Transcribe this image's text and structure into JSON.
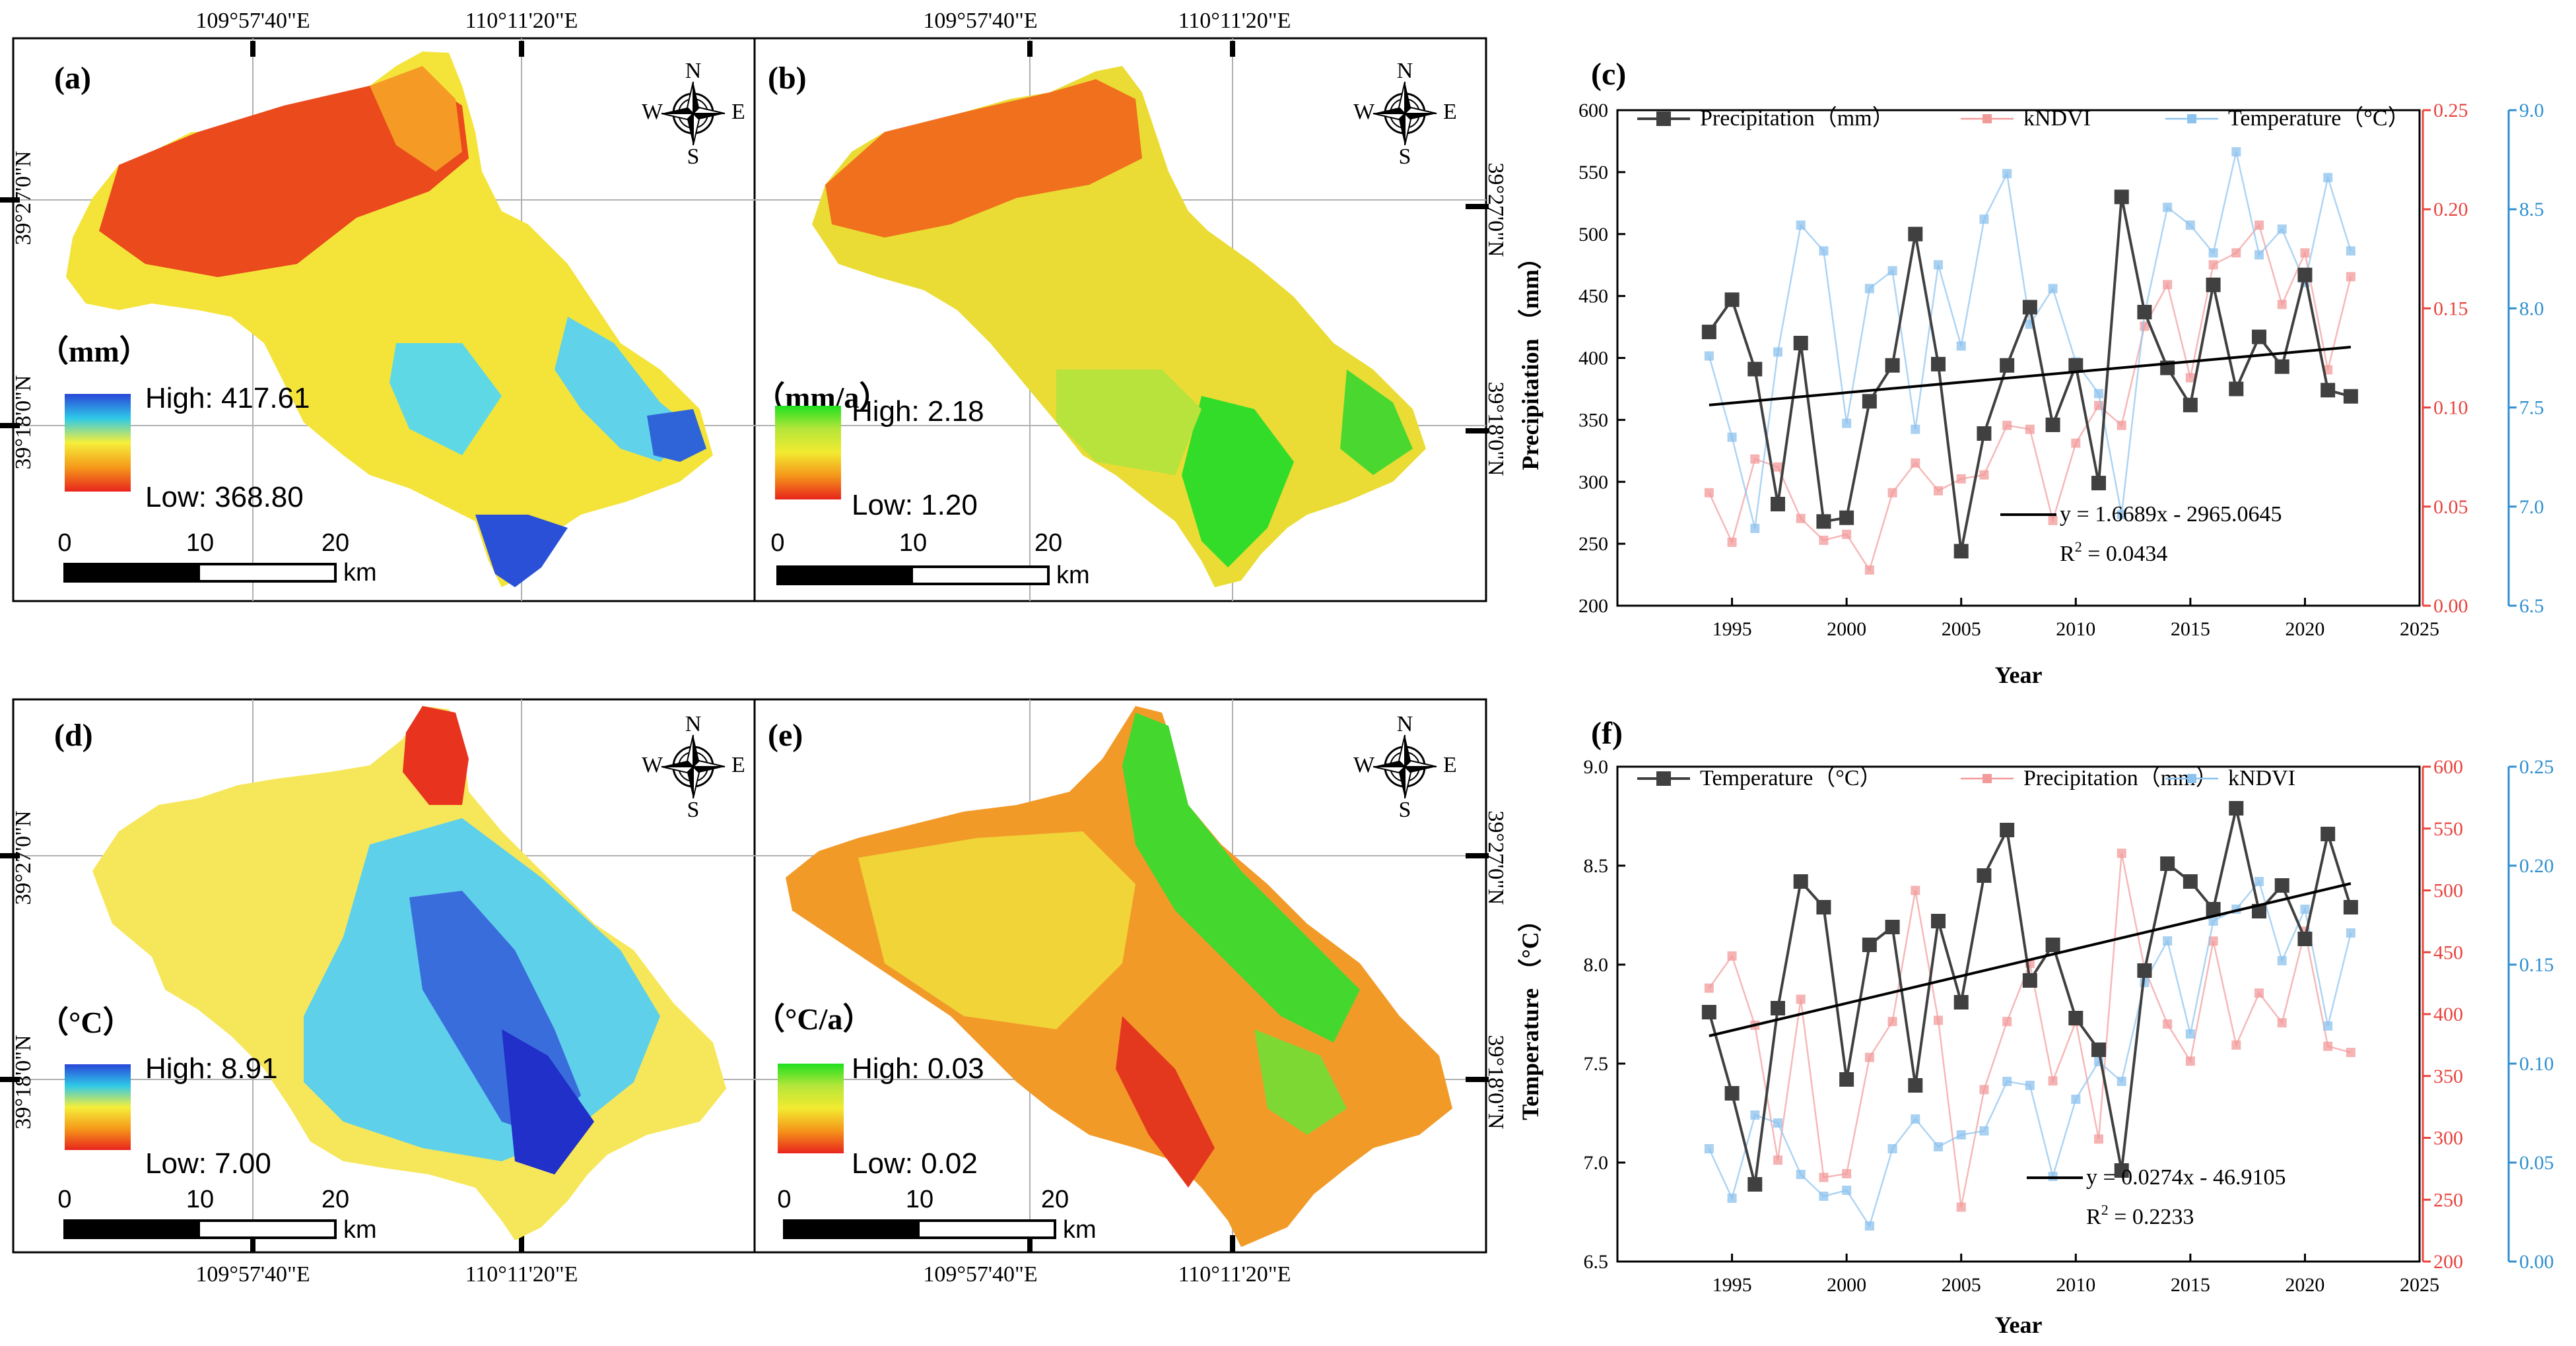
{
  "maps": {
    "top_lon_labels": [
      "109°57'40\"E",
      "110°11'20\"E"
    ],
    "bottom_lon_labels": [
      "109°57'40\"E",
      "110°11'20\"E"
    ],
    "lat_labels": [
      "39°27'0\"N",
      "39°18'0\"N"
    ],
    "scale_bar": {
      "ticks": [
        "0",
        "10",
        "20"
      ],
      "unit": "km"
    },
    "north_arrow": {
      "n": "N",
      "s": "S",
      "e": "E",
      "w": "W"
    },
    "panels": [
      {
        "label": "(a)",
        "unit": "（mm）",
        "high": "High: 417.61",
        "low": "Low: 368.80",
        "colors": [
          "#2846d8",
          "#2fc9e8",
          "#f5ef3a",
          "#f59a1a",
          "#e8241c"
        ]
      },
      {
        "label": "(b)",
        "unit": "（mm/a）",
        "high": "High: 2.18",
        "low": "Low: 1.20",
        "colors": [
          "#1fe01f",
          "#b6e63a",
          "#f2ea30",
          "#f5951a",
          "#e8241c"
        ]
      },
      {
        "label": "(d)",
        "unit": "（°C）",
        "high": "High: 8.91",
        "low": "Low: 7.00",
        "colors": [
          "#2846d8",
          "#2fc9e8",
          "#f5ef3a",
          "#f59a1a",
          "#e8241c"
        ]
      },
      {
        "label": "(e)",
        "unit": "（°C/a）",
        "high": "High: 0.03",
        "low": "Low: 0.02",
        "colors": [
          "#1fe01f",
          "#b6e63a",
          "#f2ea30",
          "#f5951a",
          "#e8241c"
        ]
      }
    ]
  },
  "colors": {
    "dark": "#404040",
    "pink": "#f29a9a",
    "blue": "#8cc2ee",
    "red_axis": "#e8443e",
    "blue_axis": "#2f8fd0"
  },
  "chart_data": [
    {
      "type": "line",
      "title": "(c)",
      "xlabel": "Year",
      "ylabel": "Precipitation （mm）",
      "x": [
        1994,
        1995,
        1996,
        1997,
        1998,
        1999,
        2000,
        2001,
        2002,
        2003,
        2004,
        2005,
        2006,
        2007,
        2008,
        2009,
        2010,
        2011,
        2012,
        2013,
        2014,
        2015,
        2016,
        2017,
        2018,
        2019,
        2020,
        2021,
        2022
      ],
      "xlim": [
        1990,
        2025
      ],
      "xticks": [
        1995,
        2000,
        2005,
        2010,
        2015,
        2020,
        2025
      ],
      "y_left": {
        "lim": [
          200,
          600
        ],
        "ticks": [
          200,
          250,
          300,
          350,
          400,
          450,
          500,
          550,
          600
        ]
      },
      "y_right1": {
        "lim": [
          0,
          0.25
        ],
        "ticks": [
          "0.00",
          "0.05",
          "0.10",
          "0.15",
          "0.20",
          "0.25"
        ]
      },
      "y_right2": {
        "lim": [
          6.5,
          9.0
        ],
        "ticks": [
          "6.5",
          "7.0",
          "7.5",
          "8.0",
          "8.5",
          "9.0"
        ]
      },
      "series": [
        {
          "name": "Precipitation（mm）",
          "axis": "left",
          "style": "primary",
          "values": [
            421,
            447,
            391,
            282,
            412,
            268,
            271,
            365,
            394,
            500,
            395,
            244,
            339,
            394,
            441,
            346,
            394,
            299,
            530,
            437,
            392,
            362,
            459,
            375,
            417,
            393,
            467,
            374,
            369
          ]
        },
        {
          "name": "kNDVI",
          "axis": "right1",
          "style": "pink",
          "values": [
            0.057,
            0.032,
            0.074,
            0.07,
            0.044,
            0.033,
            0.036,
            0.018,
            0.057,
            0.072,
            0.058,
            0.064,
            0.066,
            0.091,
            0.089,
            0.043,
            0.082,
            0.101,
            0.091,
            0.141,
            0.162,
            0.115,
            0.172,
            0.178,
            0.192,
            0.152,
            0.178,
            0.119,
            0.166
          ]
        },
        {
          "name": "Temperature（°C）",
          "axis": "right2",
          "style": "blue",
          "values": [
            7.76,
            7.35,
            6.89,
            7.78,
            8.42,
            8.29,
            7.42,
            8.1,
            8.19,
            7.39,
            8.22,
            7.81,
            8.45,
            8.68,
            7.92,
            8.1,
            7.73,
            7.57,
            6.96,
            7.97,
            8.51,
            8.42,
            8.28,
            8.79,
            8.27,
            8.4,
            8.13,
            8.66,
            8.29
          ]
        }
      ],
      "trendline": {
        "x": [
          1994,
          2022
        ],
        "y": [
          362.0,
          408.8
        ]
      },
      "equation": "y = 1.6689x - 2965.0645",
      "r2_prefix": "R",
      "r2_exp": "2",
      "r2_value": " = 0.0434"
    },
    {
      "type": "line",
      "title": "(f)",
      "xlabel": "Year",
      "ylabel": "Temperature （°C）",
      "x": [
        1994,
        1995,
        1996,
        1997,
        1998,
        1999,
        2000,
        2001,
        2002,
        2003,
        2004,
        2005,
        2006,
        2007,
        2008,
        2009,
        2010,
        2011,
        2012,
        2013,
        2014,
        2015,
        2016,
        2017,
        2018,
        2019,
        2020,
        2021,
        2022
      ],
      "xlim": [
        1990,
        2025
      ],
      "xticks": [
        1995,
        2000,
        2005,
        2010,
        2015,
        2020,
        2025
      ],
      "y_left": {
        "lim": [
          6.5,
          9.0
        ],
        "ticks": [
          "6.5",
          "7.0",
          "7.5",
          "8.0",
          "8.5",
          "9.0"
        ]
      },
      "y_right1": {
        "lim": [
          200,
          600
        ],
        "ticks": [
          "200",
          "250",
          "300",
          "350",
          "400",
          "450",
          "500",
          "550",
          "600"
        ]
      },
      "y_right2": {
        "lim": [
          0,
          0.25
        ],
        "ticks": [
          "0.00",
          "0.05",
          "0.10",
          "0.15",
          "0.20",
          "0.25"
        ]
      },
      "series": [
        {
          "name": "Temperature（°C）",
          "axis": "left",
          "style": "primary",
          "values": [
            7.76,
            7.35,
            6.89,
            7.78,
            8.42,
            8.29,
            7.42,
            8.1,
            8.19,
            7.39,
            8.22,
            7.81,
            8.45,
            8.68,
            7.92,
            8.1,
            7.73,
            7.57,
            6.96,
            7.97,
            8.51,
            8.42,
            8.28,
            8.79,
            8.27,
            8.4,
            8.13,
            8.66,
            8.29
          ]
        },
        {
          "name": "Precipitation（mm）",
          "axis": "right1",
          "style": "pink",
          "values": [
            421,
            447,
            391,
            282,
            412,
            268,
            271,
            365,
            394,
            500,
            395,
            244,
            339,
            394,
            441,
            346,
            394,
            299,
            530,
            437,
            392,
            362,
            459,
            375,
            417,
            393,
            467,
            374,
            369
          ]
        },
        {
          "name": "kNDVI",
          "axis": "right2",
          "style": "blue",
          "values": [
            0.057,
            0.032,
            0.074,
            0.07,
            0.044,
            0.033,
            0.036,
            0.018,
            0.057,
            0.072,
            0.058,
            0.064,
            0.066,
            0.091,
            0.089,
            0.043,
            0.082,
            0.101,
            0.091,
            0.141,
            0.162,
            0.115,
            0.172,
            0.178,
            0.192,
            0.152,
            0.178,
            0.119,
            0.166
          ]
        }
      ],
      "trendline": {
        "x": [
          1994,
          2022
        ],
        "y": [
          7.64,
          8.41
        ]
      },
      "equation": "y = 0.0274x - 46.9105",
      "r2_prefix": "R",
      "r2_exp": "2",
      "r2_value": " = 0.2233"
    }
  ]
}
